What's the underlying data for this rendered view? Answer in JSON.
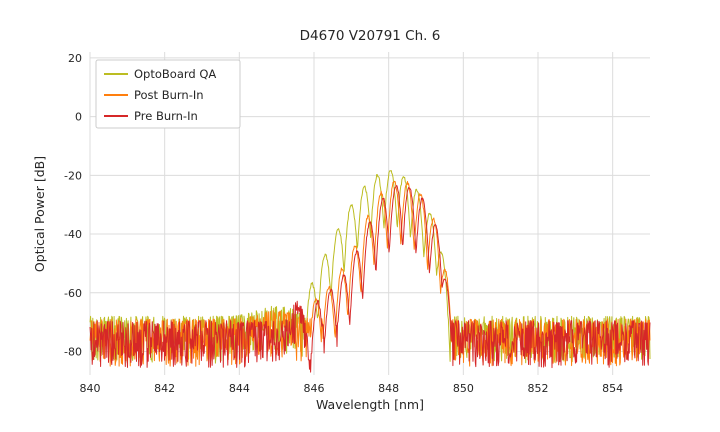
{
  "chart_data": {
    "type": "line",
    "title": "D4670 V20791 Ch. 6",
    "xlabel": "Wavelength [nm]",
    "ylabel": "Optical Power [dB]",
    "xlim": [
      840,
      855
    ],
    "ylim": [
      -88,
      22
    ],
    "xticks": [
      840,
      842,
      844,
      846,
      848,
      850,
      852,
      854
    ],
    "yticks": [
      20,
      0,
      -20,
      -40,
      -60,
      -80
    ],
    "grid": true,
    "grid_color": "#dcdcdc",
    "background": "#ffffff",
    "legend_position": "upper left",
    "mode_spacing_nm": 0.36,
    "sample_step_nm": 0.015,
    "series": [
      {
        "name": "OptoBoard QA",
        "color": "#bcbd22",
        "seed": 11,
        "noise_floor_db": -71,
        "floor_bump": {
          "x": 845.0,
          "amp": 3.5,
          "w": 0.7
        },
        "dip_depth_db": 80,
        "modes": [
          [
            845.95,
            -57
          ],
          [
            846.3,
            -47
          ],
          [
            846.65,
            -38
          ],
          [
            847.0,
            -30
          ],
          [
            847.35,
            -24
          ],
          [
            847.7,
            -20
          ],
          [
            848.05,
            -18.5
          ],
          [
            848.4,
            -20.5
          ],
          [
            848.75,
            -25
          ],
          [
            849.1,
            -33
          ],
          [
            849.4,
            -46
          ]
        ]
      },
      {
        "name": "Post Burn-In",
        "color": "#ff7f0e",
        "seed": 22,
        "noise_floor_db": -72,
        "floor_bump": {
          "x": 845.0,
          "amp": 3.0,
          "w": 0.7
        },
        "dip_depth_db": 90,
        "modes": [
          [
            846.05,
            -62
          ],
          [
            846.4,
            -58
          ],
          [
            846.75,
            -52
          ],
          [
            847.1,
            -44
          ],
          [
            847.45,
            -34
          ],
          [
            847.8,
            -26
          ],
          [
            848.15,
            -22
          ],
          [
            848.5,
            -22.5
          ],
          [
            848.85,
            -26.5
          ],
          [
            849.2,
            -35
          ],
          [
            849.5,
            -52
          ]
        ]
      },
      {
        "name": "Pre Burn-In",
        "color": "#d62728",
        "seed": 33,
        "noise_floor_db": -72.5,
        "floor_bump": {
          "x": 845.55,
          "amp": 7,
          "w": 0.18
        },
        "floor_notch": {
          "x": 845.88,
          "amp": -13,
          "w": 0.07
        },
        "dip_depth_db": 90,
        "modes": [
          [
            846.1,
            -63
          ],
          [
            846.45,
            -59
          ],
          [
            846.8,
            -54
          ],
          [
            847.15,
            -46
          ],
          [
            847.5,
            -36
          ],
          [
            847.85,
            -28
          ],
          [
            848.2,
            -23.5
          ],
          [
            848.55,
            -24
          ],
          [
            848.9,
            -28
          ],
          [
            849.25,
            -37
          ],
          [
            849.5,
            -55
          ]
        ]
      }
    ]
  }
}
